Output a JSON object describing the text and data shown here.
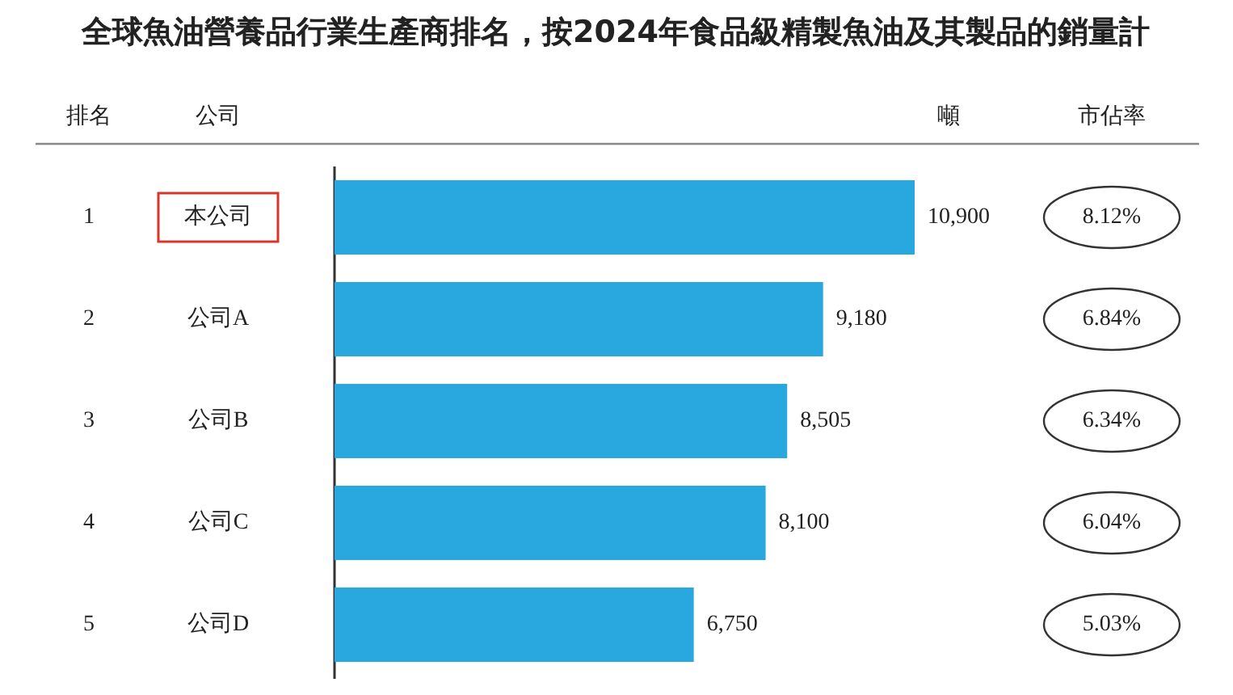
{
  "chart_data": {
    "type": "bar",
    "orientation": "horizontal",
    "title": "全球魚油營養品行業生產商排名，按2024年食品級精製魚油及其製品的銷量計",
    "ylabel": "公司",
    "xlabel": "噸",
    "categories": [
      "本公司",
      "公司A",
      "公司B",
      "公司C",
      "公司D"
    ],
    "values": [
      10900,
      9180,
      8505,
      8100,
      6750
    ],
    "value_labels": [
      "10,900",
      "9,180",
      "8,505",
      "8,100",
      "6,750"
    ],
    "color": "#29a8e0",
    "annotations": [
      "排名",
      "市佔率",
      "1",
      "2",
      "3",
      "4",
      "5",
      "8.12%",
      "6.84%",
      "6.34%",
      "6.04%",
      "5.03%"
    ]
  }
}
